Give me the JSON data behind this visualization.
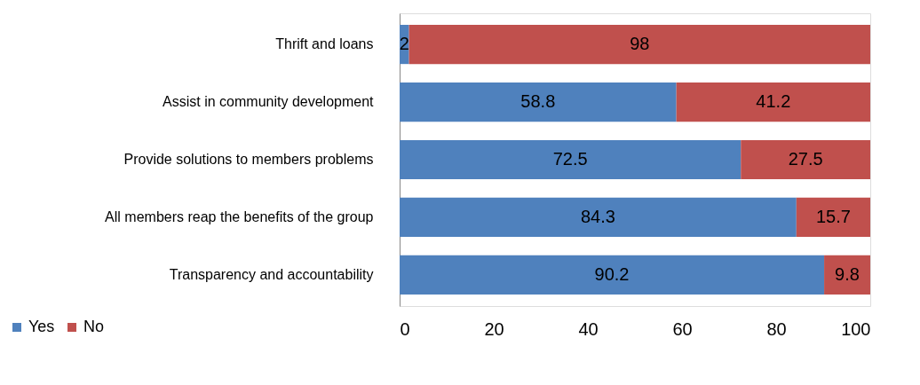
{
  "chart_data": {
    "type": "bar",
    "orientation": "horizontal",
    "stacked": true,
    "categories": [
      "Thrift and loans",
      "Assist in community development",
      "Provide solutions to members problems",
      "All members reap the benefits of the group",
      "Transparency and accountability"
    ],
    "series": [
      {
        "name": "Yes",
        "color": "#4f81bd",
        "values": [
          2,
          58.8,
          72.5,
          84.3,
          90.2
        ]
      },
      {
        "name": "No",
        "color": "#c0504d",
        "values": [
          98,
          41.2,
          27.5,
          15.7,
          9.8
        ]
      }
    ],
    "xlim": [
      0,
      100
    ],
    "xticks": [
      0,
      20,
      40,
      60,
      80,
      100
    ],
    "grid": false,
    "legend": "bottom left",
    "data_labels": true
  }
}
